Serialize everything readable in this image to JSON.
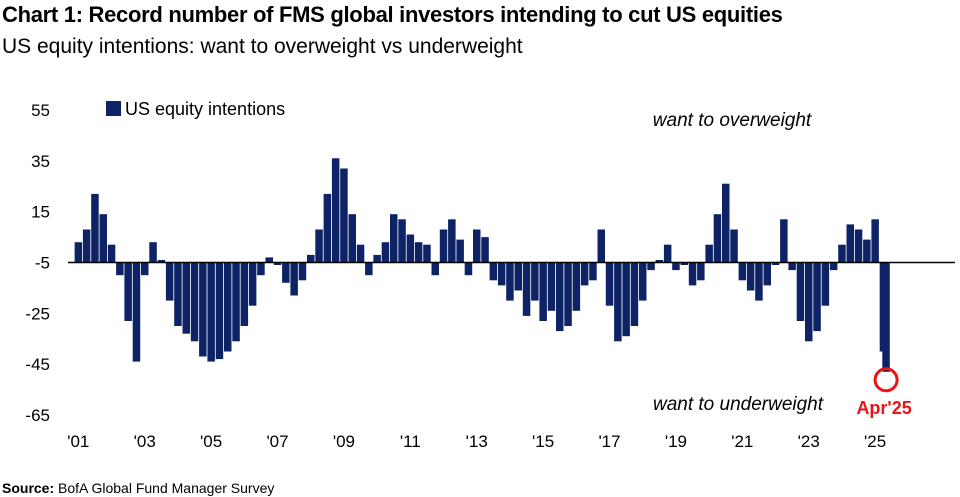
{
  "title": "Chart 1: Record number of FMS global investors intending to cut US equities",
  "subtitle": "US equity intentions: want to overweight vs underweight",
  "source": {
    "label": "Source:",
    "text": "BofA Global Fund Manager Survey"
  },
  "chart_data": {
    "type": "bar",
    "legend": {
      "label": "US equity intentions",
      "color": "#0d2366",
      "position": "top-left"
    },
    "bar_color": "#0d2366",
    "baseline": -5,
    "ylim": [
      -65,
      55
    ],
    "y_ticks": [
      55,
      35,
      15,
      -5,
      -25,
      -45,
      -65
    ],
    "x_ticks": [
      {
        "label": "'01",
        "year": 2001
      },
      {
        "label": "'03",
        "year": 2003
      },
      {
        "label": "'05",
        "year": 2005
      },
      {
        "label": "'07",
        "year": 2007
      },
      {
        "label": "'09",
        "year": 2009
      },
      {
        "label": "'11",
        "year": 2011
      },
      {
        "label": "'13",
        "year": 2013
      },
      {
        "label": "'15",
        "year": 2015
      },
      {
        "label": "'17",
        "year": 2017
      },
      {
        "label": "'19",
        "year": 2019
      },
      {
        "label": "'21",
        "year": 2021
      },
      {
        "label": "'23",
        "year": 2023
      },
      {
        "label": "'25",
        "year": 2025
      }
    ],
    "xlim": [
      2000.9,
      2025.9
    ],
    "annotations": {
      "overweight": "want to overweight",
      "underweight": "want to underweight",
      "callout": "Apr'25",
      "callout_color": "#e8141a"
    },
    "series": [
      {
        "points": [
          [
            2001.0,
            3
          ],
          [
            2001.25,
            8
          ],
          [
            2001.5,
            22
          ],
          [
            2001.75,
            14
          ],
          [
            2002.0,
            2
          ],
          [
            2002.25,
            -10
          ],
          [
            2002.5,
            -28
          ],
          [
            2002.75,
            -44
          ],
          [
            2003.0,
            -10
          ],
          [
            2003.25,
            3
          ],
          [
            2003.5,
            -4
          ],
          [
            2003.75,
            -20
          ],
          [
            2004.0,
            -30
          ],
          [
            2004.25,
            -33
          ],
          [
            2004.5,
            -36
          ],
          [
            2004.75,
            -42
          ],
          [
            2005.0,
            -44
          ],
          [
            2005.25,
            -43
          ],
          [
            2005.5,
            -40
          ],
          [
            2005.75,
            -36
          ],
          [
            2006.0,
            -30
          ],
          [
            2006.25,
            -22
          ],
          [
            2006.5,
            -10
          ],
          [
            2006.75,
            -3
          ],
          [
            2007.0,
            -6
          ],
          [
            2007.25,
            -13
          ],
          [
            2007.5,
            -18
          ],
          [
            2007.75,
            -12
          ],
          [
            2008.0,
            -2
          ],
          [
            2008.25,
            8
          ],
          [
            2008.5,
            22
          ],
          [
            2008.75,
            36
          ],
          [
            2009.0,
            32
          ],
          [
            2009.25,
            14
          ],
          [
            2009.5,
            2
          ],
          [
            2009.75,
            -10
          ],
          [
            2010.0,
            -2
          ],
          [
            2010.25,
            3
          ],
          [
            2010.5,
            14
          ],
          [
            2010.75,
            12
          ],
          [
            2011.0,
            6
          ],
          [
            2011.25,
            3
          ],
          [
            2011.5,
            2
          ],
          [
            2011.75,
            -10
          ],
          [
            2012.0,
            8
          ],
          [
            2012.25,
            12
          ],
          [
            2012.5,
            4
          ],
          [
            2012.75,
            -10
          ],
          [
            2013.0,
            8
          ],
          [
            2013.25,
            5
          ],
          [
            2013.5,
            -12
          ],
          [
            2013.75,
            -14
          ],
          [
            2014.0,
            -20
          ],
          [
            2014.25,
            -16
          ],
          [
            2014.5,
            -26
          ],
          [
            2014.75,
            -20
          ],
          [
            2015.0,
            -28
          ],
          [
            2015.25,
            -24
          ],
          [
            2015.5,
            -32
          ],
          [
            2015.75,
            -30
          ],
          [
            2016.0,
            -24
          ],
          [
            2016.25,
            -14
          ],
          [
            2016.5,
            -12
          ],
          [
            2016.75,
            8
          ],
          [
            2017.0,
            -22
          ],
          [
            2017.25,
            -36
          ],
          [
            2017.5,
            -34
          ],
          [
            2017.75,
            -30
          ],
          [
            2018.0,
            -20
          ],
          [
            2018.25,
            -8
          ],
          [
            2018.5,
            -4
          ],
          [
            2018.75,
            2
          ],
          [
            2019.0,
            -8
          ],
          [
            2019.25,
            -6
          ],
          [
            2019.5,
            -14
          ],
          [
            2019.75,
            -12
          ],
          [
            2020.0,
            2
          ],
          [
            2020.25,
            14
          ],
          [
            2020.5,
            26
          ],
          [
            2020.75,
            8
          ],
          [
            2021.0,
            -12
          ],
          [
            2021.25,
            -16
          ],
          [
            2021.5,
            -20
          ],
          [
            2021.75,
            -14
          ],
          [
            2022.0,
            -6
          ],
          [
            2022.25,
            12
          ],
          [
            2022.5,
            -8
          ],
          [
            2022.75,
            -28
          ],
          [
            2023.0,
            -36
          ],
          [
            2023.25,
            -32
          ],
          [
            2023.5,
            -22
          ],
          [
            2023.75,
            -8
          ],
          [
            2024.0,
            2
          ],
          [
            2024.25,
            10
          ],
          [
            2024.5,
            8
          ],
          [
            2024.75,
            4
          ],
          [
            2025.0,
            12
          ],
          [
            2025.25,
            -40
          ],
          [
            2025.33,
            -48
          ]
        ]
      }
    ]
  }
}
